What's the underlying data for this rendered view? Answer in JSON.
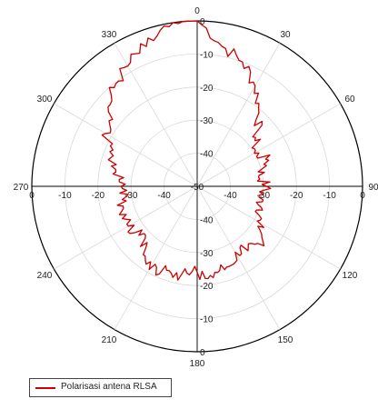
{
  "chart_data": {
    "type": "polar",
    "title": "",
    "angle_ticks": [
      "0",
      "30",
      "60",
      "90",
      "120",
      "150",
      "180",
      "210",
      "240",
      "270",
      "300",
      "330"
    ],
    "radial_ticks": [
      "-50",
      "-40",
      "-30",
      "-20",
      "-10",
      "0"
    ],
    "radial_range": [
      -50,
      0
    ],
    "grid": true,
    "legend_position": "bottom-left",
    "colors": {
      "series": "#cc0000",
      "grid": "#d9d9d9",
      "outline": "#000000"
    },
    "series": [
      {
        "name": "Polarisasi antena RLSA",
        "theta": [
          0,
          10,
          20,
          30,
          40,
          50,
          60,
          70,
          80,
          90,
          100,
          110,
          120,
          130,
          140,
          150,
          160,
          170,
          180,
          190,
          200,
          210,
          220,
          230,
          240,
          250,
          260,
          270,
          280,
          290,
          300,
          310,
          320,
          330,
          340,
          350
        ],
        "r": [
          0,
          -7,
          -10,
          -15,
          -21,
          -27,
          -30,
          -27,
          -31,
          -29,
          -31,
          -29,
          -29,
          -24,
          -26,
          -27,
          -24,
          -22,
          -24,
          -23,
          -23,
          -21,
          -26,
          -27,
          -26,
          -25,
          -27,
          -27,
          -25,
          -23,
          -18,
          -15,
          -11,
          -8,
          -5,
          -1
        ]
      }
    ]
  }
}
